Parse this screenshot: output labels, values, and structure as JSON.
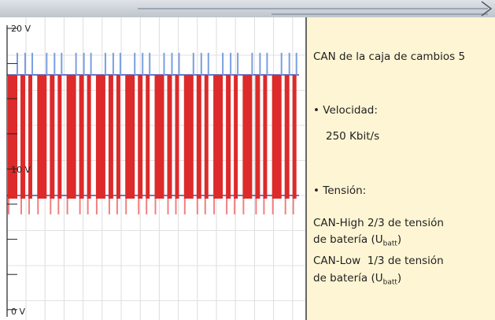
{
  "scope": {
    "axis_labels": [
      "20 V",
      "10 V",
      "0 V"
    ]
  },
  "panel": {
    "title": "CAN de la caja de cambios 5",
    "speed_heading": "• Velocidad:",
    "speed_value": "250 Kbit/s",
    "voltage_heading": "• Tensión:",
    "high_line1": "CAN-High 2/3 de tensión",
    "high_line2": {
      "text": "de batería (U",
      "sub": "batt",
      "end": ")"
    },
    "low_line1": "CAN-Low  1/3 de tensión",
    "low_line2": {
      "text": "de batería (U",
      "sub": "batt",
      "end": ")"
    }
  }
}
